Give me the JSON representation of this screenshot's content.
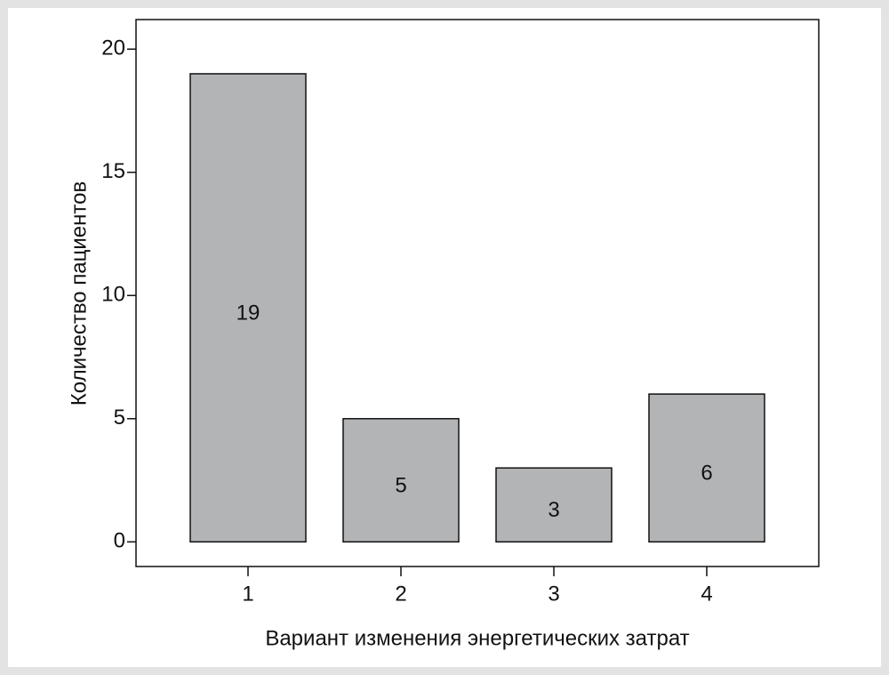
{
  "chart_data": {
    "type": "bar",
    "x_label": "Вариант изменения энергетических затрат",
    "y_label": "Количество пациентов",
    "categories": [
      "1",
      "2",
      "3",
      "4"
    ],
    "values": [
      19,
      5,
      3,
      6
    ],
    "color": "#b3b4b6",
    "ylim": [
      -1.0,
      21.2
    ],
    "yticks": [
      0,
      5,
      10,
      15,
      20
    ],
    "grid": false,
    "value_labels_inside": true
  }
}
